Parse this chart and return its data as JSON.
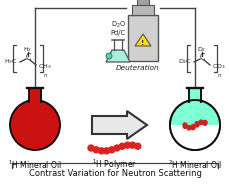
{
  "title": "Contrast Variation for Neutron Scattering",
  "title_fontsize": 6.0,
  "bg_color": "#ffffff",
  "flask_left_color": "#cc1111",
  "flask_right_color": "#7fffd4",
  "flask_outline": "#111111",
  "arrow_color": "#333333",
  "arrow_fill": "#e8e8e8",
  "polymer_dot_color": "#11cccc",
  "polymer_dot_red": "#dd2222",
  "label_left": "$^{1}$H Mineral Oil",
  "label_right": "$^{2}$H Mineral Oil",
  "label_polymer": "$^{1}$H Polymer",
  "label_deuteration": "Deuteration",
  "label_d2o": "D$_2$O",
  "label_pdc": "Pd/C",
  "wavy_color": "#cc2222",
  "line_color": "#444444",
  "label_fontsize": 5.5,
  "small_fontsize": 4.8
}
